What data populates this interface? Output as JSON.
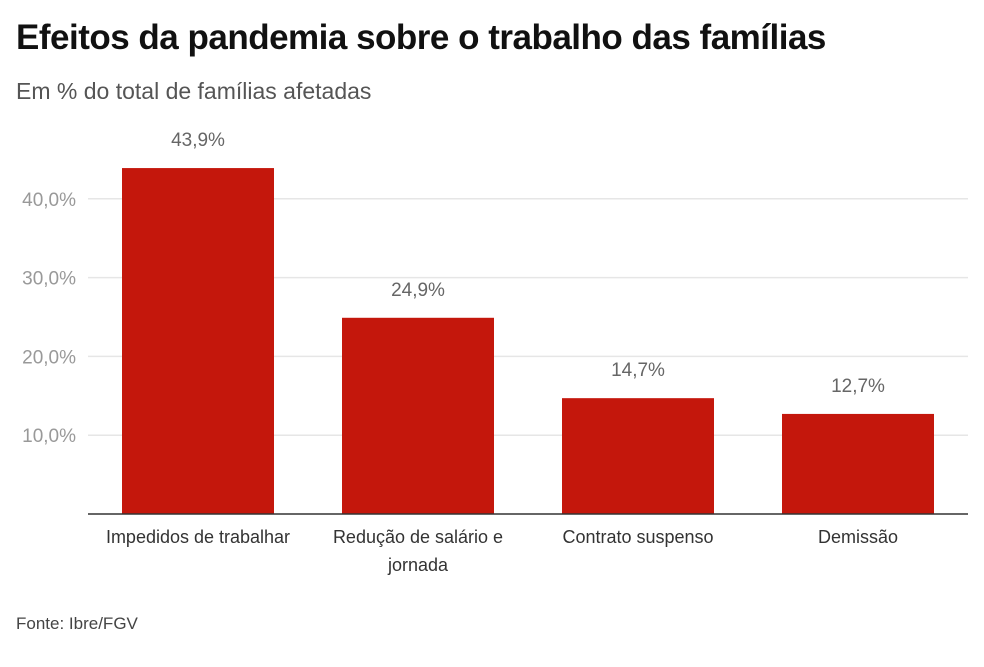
{
  "header": {
    "title": "Efeitos da pandemia sobre o trabalho das famílias",
    "subtitle": "Em % do total de famílias afetadas"
  },
  "footer": {
    "source": "Fonte: Ibre/FGV"
  },
  "colors": {
    "bar": "#c4170c",
    "grid": "#e6e6e6",
    "axis": "#333333"
  },
  "chart_data": {
    "type": "bar",
    "title": "Efeitos da pandemia sobre o trabalho das famílias",
    "subtitle": "Em % do total de famílias afetadas",
    "categories": [
      [
        "Impedidos de trabalhar"
      ],
      [
        "Redução de salário e",
        "jornada"
      ],
      [
        "Contrato suspenso"
      ],
      [
        "Demissão"
      ]
    ],
    "values": [
      43.9,
      24.9,
      14.7,
      12.7
    ],
    "value_labels": [
      "43,9%",
      "24,9%",
      "14,7%",
      "12,7%"
    ],
    "y_ticks": [
      10,
      20,
      30,
      40
    ],
    "y_tick_labels": [
      "10,0%",
      "20,0%",
      "30,0%",
      "40,0%"
    ],
    "ylim": [
      0,
      50
    ],
    "xlabel": "",
    "ylabel": "",
    "grid": true,
    "legend": "none"
  }
}
